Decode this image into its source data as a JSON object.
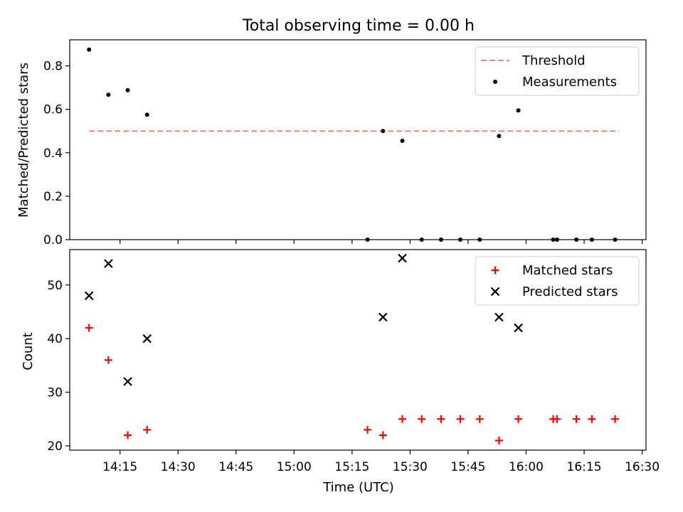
{
  "chart_data": [
    {
      "type": "scatter",
      "title": "Total observing time = 0.00 h",
      "ylabel": "Matched/Predicted stars",
      "xlabel": "",
      "xlim": [
        "14:02",
        "16:31"
      ],
      "ylim": [
        0,
        0.92
      ],
      "yticks": [
        0.0,
        0.2,
        0.4,
        0.6,
        0.8
      ],
      "ytick_labels": [
        "0.0",
        "0.2",
        "0.4",
        "0.6",
        "0.8"
      ],
      "legend": {
        "placement": "top-right",
        "entries": [
          "Threshold",
          "Measurements"
        ]
      },
      "series": [
        {
          "name": "Threshold",
          "type": "line",
          "style": "dashed",
          "color": "#ff7f7f",
          "x": [
            "14:07",
            "16:24"
          ],
          "y": [
            0.5,
            0.5
          ]
        },
        {
          "name": "Measurements",
          "type": "scatter",
          "color": "#000000",
          "x": [
            "14:07",
            "14:12",
            "14:17",
            "14:22",
            "15:19",
            "15:23",
            "15:28",
            "15:33",
            "15:38",
            "15:43",
            "15:48",
            "15:53",
            "15:58",
            "16:07",
            "16:08",
            "16:13",
            "16:17",
            "16:23"
          ],
          "y": [
            0.875,
            0.667,
            0.688,
            0.575,
            0.0,
            0.5,
            0.455,
            0.0,
            0.0,
            0.0,
            0.0,
            0.477,
            0.595,
            0.0,
            0.0,
            0.0,
            0.0,
            0.0
          ]
        }
      ]
    },
    {
      "type": "scatter",
      "title": "",
      "xlabel": "Time (UTC)",
      "ylabel": "Count",
      "xlim": [
        "14:02",
        "16:31"
      ],
      "ylim": [
        19.2,
        56.6
      ],
      "xticks": [
        "14:15",
        "14:30",
        "14:45",
        "15:00",
        "15:15",
        "15:30",
        "15:45",
        "16:00",
        "16:15",
        "16:30"
      ],
      "yticks": [
        20,
        30,
        40,
        50
      ],
      "ytick_labels": [
        "20",
        "30",
        "40",
        "50"
      ],
      "legend": {
        "placement": "top-right",
        "entries": [
          "Matched stars",
          "Predicted stars"
        ]
      },
      "series": [
        {
          "name": "Matched stars",
          "marker": "plus",
          "color": "#ff0000",
          "x": [
            "14:07",
            "14:12",
            "14:17",
            "14:22",
            "15:19",
            "15:23",
            "15:28",
            "15:33",
            "15:38",
            "15:43",
            "15:48",
            "15:53",
            "15:58",
            "16:07",
            "16:08",
            "16:13",
            "16:17",
            "16:23"
          ],
          "y": [
            42,
            36,
            22,
            23,
            23,
            22,
            25,
            25,
            25,
            25,
            25,
            21,
            25,
            25,
            25,
            25,
            25,
            25
          ]
        },
        {
          "name": "Predicted stars",
          "marker": "x",
          "color": "#000000",
          "x": [
            "14:07",
            "14:12",
            "14:17",
            "14:22",
            "15:23",
            "15:28",
            "15:53",
            "15:58"
          ],
          "y": [
            48,
            54,
            32,
            40,
            44,
            55,
            44,
            42
          ]
        }
      ]
    }
  ]
}
